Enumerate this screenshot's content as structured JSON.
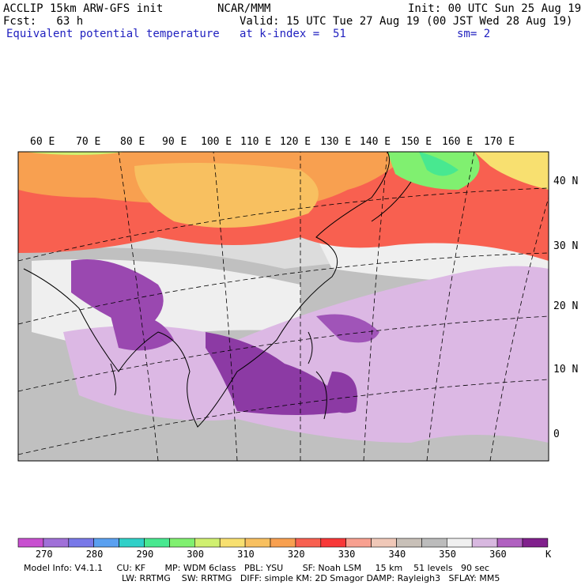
{
  "header": {
    "model": "ACCLIP 15km ARW-GFS init",
    "center": "NCAR/MMM",
    "init": "Init: 00 UTC Sun 25 Aug 19",
    "fcst": "Fcst:   63 h",
    "valid": "Valid: 15 UTC Tue 27 Aug 19 (00 JST Wed 28 Aug 19)",
    "field": "Equivalent potential temperature",
    "level": "at k-index =  51",
    "smooth": "sm= 2"
  },
  "map": {
    "lon_labels": [
      "60 E",
      "70 E",
      "80 E",
      "90 E",
      "100 E",
      "110 E",
      "120 E",
      "130 E",
      "140 E",
      "150 E",
      "160 E",
      "170 E"
    ],
    "lat_labels": [
      "40 N",
      "30 N",
      "20 N",
      "10 N",
      "0"
    ]
  },
  "colorbar": {
    "unit": "K",
    "labels": [
      "270",
      "280",
      "290",
      "300",
      "310",
      "320",
      "330",
      "340",
      "350",
      "360"
    ],
    "colors": [
      "#c850d0",
      "#a070d8",
      "#7878e8",
      "#5aa0f0",
      "#30d0c8",
      "#48e890",
      "#80f070",
      "#d0f070",
      "#f8e070",
      "#f8c060",
      "#f8a050",
      "#f86050",
      "#f83838",
      "#f8a090",
      "#f0c8b8",
      "#c8c0b8",
      "#bcbcbc",
      "#f0f0f0",
      "#d8b8e0",
      "#b060c0",
      "#80208c"
    ]
  },
  "footer": {
    "line1": "Model Info: V4.1.1     CU: KF       MP: WDM 6class   PBL: YSU       SF: Noah LSM     15 km    51 levels   90 sec",
    "line2": "LW: RRTMG    SW: RRTMG   DIFF: simple KM: 2D Smagor DAMP: Rayleigh3   SFLAY: MM5"
  }
}
